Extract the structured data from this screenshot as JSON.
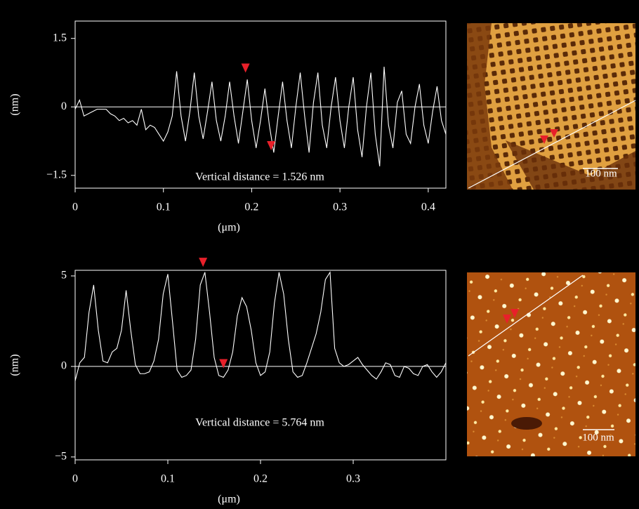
{
  "chart_data": [
    {
      "type": "line",
      "ylabel": "(nm)",
      "xlabel": "(μm)",
      "annotation": "Vertical distance = 1.526 nm",
      "image_scale_label": "100 nm",
      "color": "#ffffff",
      "zero_line": true,
      "cursor_color": "#e8202a",
      "xlim": [
        0,
        0.42
      ],
      "ylim": [
        -1.78,
        1.88
      ],
      "xticks": [
        0,
        0.1,
        0.2,
        0.3,
        0.4
      ],
      "yticks": [
        {
          "value": -1.5,
          "label": "−1.5"
        },
        0,
        1.5
      ],
      "x": [
        0,
        0.005,
        0.01,
        0.015,
        0.02,
        0.025,
        0.03,
        0.035,
        0.04,
        0.045,
        0.05,
        0.055,
        0.06,
        0.065,
        0.07,
        0.075,
        0.08,
        0.085,
        0.09,
        0.095,
        0.1,
        0.105,
        0.11,
        0.115,
        0.12,
        0.125,
        0.13,
        0.135,
        0.14,
        0.145,
        0.15,
        0.155,
        0.16,
        0.165,
        0.17,
        0.175,
        0.18,
        0.185,
        0.19,
        0.195,
        0.2,
        0.205,
        0.21,
        0.215,
        0.22,
        0.225,
        0.23,
        0.235,
        0.24,
        0.245,
        0.25,
        0.255,
        0.26,
        0.265,
        0.27,
        0.275,
        0.28,
        0.285,
        0.29,
        0.295,
        0.3,
        0.305,
        0.31,
        0.315,
        0.32,
        0.325,
        0.33,
        0.335,
        0.34,
        0.345,
        0.35,
        0.355,
        0.36,
        0.365,
        0.37,
        0.375,
        0.38,
        0.385,
        0.39,
        0.395,
        0.4,
        0.405,
        0.41,
        0.415,
        0.42
      ],
      "values": [
        -0.05,
        0.15,
        -0.2,
        -0.15,
        -0.1,
        -0.05,
        -0.05,
        -0.05,
        -0.15,
        -0.2,
        -0.3,
        -0.25,
        -0.35,
        -0.3,
        -0.4,
        -0.05,
        -0.5,
        -0.4,
        -0.45,
        -0.6,
        -0.75,
        -0.55,
        -0.2,
        0.78,
        -0.2,
        -0.75,
        -0.1,
        0.75,
        -0.2,
        -0.7,
        -0.1,
        0.55,
        -0.3,
        -0.75,
        -0.2,
        0.55,
        -0.2,
        -0.8,
        -0.1,
        0.6,
        -0.3,
        -0.9,
        -0.3,
        0.4,
        -0.4,
        -1.0,
        -0.2,
        0.55,
        -0.3,
        -0.9,
        0.0,
        0.75,
        -0.2,
        -1.0,
        0.1,
        0.75,
        -0.4,
        -0.9,
        0.0,
        0.65,
        -0.3,
        -0.9,
        0.0,
        0.65,
        -0.5,
        -1.1,
        0.0,
        0.75,
        -0.6,
        -1.3,
        0.88,
        -0.4,
        -0.9,
        0.1,
        0.35,
        -0.6,
        -0.8,
        0.0,
        0.5,
        -0.4,
        -0.8,
        -0.1,
        0.45,
        -0.3,
        -0.6
      ],
      "cursors": [
        {
          "x": 0.193,
          "y": 0.75
        },
        {
          "x": 0.222,
          "y": -0.95
        }
      ]
    },
    {
      "type": "line",
      "ylabel": "(nm)",
      "xlabel": "(μm)",
      "annotation": "Vertical distance = 5.764 nm",
      "image_scale_label": "100 nm",
      "color": "#ffffff",
      "zero_line": true,
      "cursor_color": "#e8202a",
      "xlim": [
        0,
        0.4
      ],
      "ylim": [
        -5.16,
        5.31
      ],
      "xticks": [
        0,
        0.1,
        0.2,
        0.3
      ],
      "yticks": [
        {
          "value": -5,
          "label": "−5"
        },
        0,
        5
      ],
      "x": [
        0,
        0.005,
        0.01,
        0.015,
        0.02,
        0.025,
        0.03,
        0.035,
        0.04,
        0.045,
        0.05,
        0.055,
        0.06,
        0.065,
        0.07,
        0.075,
        0.08,
        0.085,
        0.09,
        0.095,
        0.1,
        0.105,
        0.11,
        0.115,
        0.12,
        0.125,
        0.13,
        0.135,
        0.14,
        0.145,
        0.15,
        0.155,
        0.16,
        0.165,
        0.17,
        0.175,
        0.18,
        0.185,
        0.19,
        0.195,
        0.2,
        0.205,
        0.21,
        0.215,
        0.22,
        0.225,
        0.23,
        0.235,
        0.24,
        0.245,
        0.25,
        0.255,
        0.26,
        0.265,
        0.27,
        0.275,
        0.28,
        0.285,
        0.29,
        0.295,
        0.3,
        0.305,
        0.31,
        0.315,
        0.32,
        0.325,
        0.33,
        0.335,
        0.34,
        0.345,
        0.35,
        0.355,
        0.36,
        0.365,
        0.37,
        0.375,
        0.38,
        0.385,
        0.39,
        0.395,
        0.4
      ],
      "values": [
        -0.8,
        0.2,
        0.5,
        3.0,
        4.5,
        2.0,
        0.3,
        0.2,
        0.8,
        1.0,
        2.0,
        4.2,
        2.0,
        0.1,
        -0.4,
        -0.4,
        -0.3,
        0.3,
        1.5,
        4.0,
        5.1,
        2.5,
        -0.2,
        -0.6,
        -0.5,
        -0.2,
        1.5,
        4.5,
        5.2,
        3.0,
        0.5,
        -0.5,
        -0.6,
        -0.2,
        0.8,
        2.8,
        3.8,
        3.3,
        2.0,
        0.2,
        -0.5,
        -0.3,
        0.8,
        3.5,
        5.2,
        4.0,
        1.5,
        -0.3,
        -0.6,
        -0.5,
        0.2,
        1.0,
        1.8,
        3.0,
        4.8,
        5.2,
        1.0,
        0.2,
        0.0,
        0.1,
        0.3,
        0.5,
        0.1,
        -0.2,
        -0.5,
        -0.7,
        -0.3,
        0.2,
        0.1,
        -0.5,
        -0.6,
        0.0,
        -0.1,
        -0.4,
        -0.5,
        0.0,
        0.1,
        -0.3,
        -0.6,
        -0.3,
        0.2
      ],
      "cursors": [
        {
          "x": 0.138,
          "y": 5.5
        },
        {
          "x": 0.16,
          "y": -0.1
        }
      ]
    }
  ]
}
